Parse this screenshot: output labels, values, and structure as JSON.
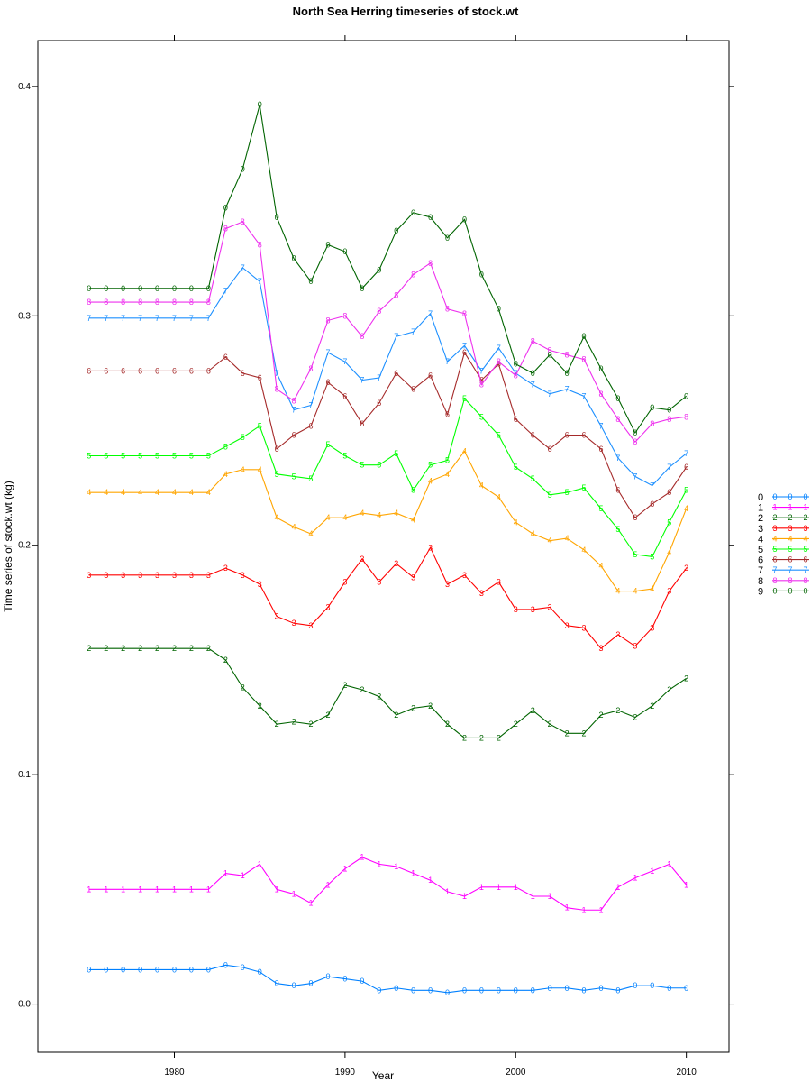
{
  "chart_data": {
    "type": "line",
    "title": "North Sea Herring timeseries of stock.wt",
    "xlabel": "Year",
    "ylabel": "Time series of stock.wt (kg)",
    "xlim": [
      1972,
      2012.5
    ],
    "ylim": [
      -0.021,
      0.42
    ],
    "x_ticks": [
      "1980",
      "1990",
      "2000",
      "2010"
    ],
    "y_ticks": [
      "0.0",
      "0.1",
      "0.2",
      "0.3",
      "0.4"
    ],
    "grid": false,
    "legend_position": "right",
    "x": [
      1975,
      1976,
      1977,
      1978,
      1979,
      1980,
      1981,
      1982,
      1983,
      1984,
      1985,
      1986,
      1987,
      1988,
      1989,
      1990,
      1991,
      1992,
      1993,
      1994,
      1995,
      1996,
      1997,
      1998,
      1999,
      2000,
      2001,
      2002,
      2003,
      2004,
      2005,
      2006,
      2007,
      2008,
      2009,
      2010
    ],
    "series": [
      {
        "name": "0",
        "marker": "0",
        "color": "#0080ff",
        "values": [
          0.015,
          0.015,
          0.015,
          0.015,
          0.015,
          0.015,
          0.015,
          0.015,
          0.017,
          0.016,
          0.014,
          0.009,
          0.008,
          0.009,
          0.012,
          0.011,
          0.01,
          0.006,
          0.007,
          0.006,
          0.006,
          0.005,
          0.006,
          0.006,
          0.006,
          0.006,
          0.006,
          0.007,
          0.007,
          0.006,
          0.007,
          0.006,
          0.008,
          0.008,
          0.007,
          0.007
        ]
      },
      {
        "name": "1",
        "marker": "1",
        "color": "#ff00ff",
        "values": [
          0.05,
          0.05,
          0.05,
          0.05,
          0.05,
          0.05,
          0.05,
          0.05,
          0.057,
          0.056,
          0.061,
          0.05,
          0.048,
          0.044,
          0.052,
          0.059,
          0.064,
          0.061,
          0.06,
          0.057,
          0.054,
          0.049,
          0.047,
          0.051,
          0.051,
          0.051,
          0.047,
          0.047,
          0.042,
          0.041,
          0.041,
          0.051,
          0.055,
          0.058,
          0.061,
          0.052
        ]
      },
      {
        "name": "2",
        "marker": "2",
        "color": "#006400",
        "values": [
          0.155,
          0.155,
          0.155,
          0.155,
          0.155,
          0.155,
          0.155,
          0.155,
          0.15,
          0.138,
          0.13,
          0.122,
          0.123,
          0.122,
          0.126,
          0.139,
          0.137,
          0.134,
          0.126,
          0.129,
          0.13,
          0.122,
          0.116,
          0.116,
          0.116,
          0.122,
          0.128,
          0.122,
          0.118,
          0.118,
          0.126,
          0.128,
          0.125,
          0.13,
          0.137,
          0.142
        ]
      },
      {
        "name": "3",
        "marker": "3",
        "color": "#ff0000",
        "values": [
          0.187,
          0.187,
          0.187,
          0.187,
          0.187,
          0.187,
          0.187,
          0.187,
          0.19,
          0.187,
          0.183,
          0.169,
          0.166,
          0.165,
          0.173,
          0.184,
          0.194,
          0.184,
          0.192,
          0.186,
          0.199,
          0.183,
          0.187,
          0.179,
          0.184,
          0.172,
          0.172,
          0.173,
          0.165,
          0.164,
          0.155,
          0.161,
          0.156,
          0.164,
          0.18,
          0.19
        ]
      },
      {
        "name": "4",
        "marker": "4",
        "color": "#ffa500",
        "values": [
          0.223,
          0.223,
          0.223,
          0.223,
          0.223,
          0.223,
          0.223,
          0.223,
          0.231,
          0.233,
          0.233,
          0.212,
          0.208,
          0.205,
          0.212,
          0.212,
          0.214,
          0.213,
          0.214,
          0.211,
          0.228,
          0.231,
          0.241,
          0.226,
          0.221,
          0.21,
          0.205,
          0.202,
          0.203,
          0.198,
          0.191,
          0.18,
          0.18,
          0.181,
          0.197,
          0.216
        ]
      },
      {
        "name": "5",
        "marker": "5",
        "color": "#00ff00",
        "values": [
          0.239,
          0.239,
          0.239,
          0.239,
          0.239,
          0.239,
          0.239,
          0.239,
          0.243,
          0.247,
          0.252,
          0.231,
          0.23,
          0.229,
          0.244,
          0.239,
          0.235,
          0.235,
          0.24,
          0.224,
          0.235,
          0.237,
          0.264,
          0.256,
          0.248,
          0.234,
          0.229,
          0.222,
          0.223,
          0.225,
          0.216,
          0.207,
          0.196,
          0.195,
          0.21,
          0.224
        ]
      },
      {
        "name": "6",
        "marker": "6",
        "color": "#a52a2a",
        "values": [
          0.276,
          0.276,
          0.276,
          0.276,
          0.276,
          0.276,
          0.276,
          0.276,
          0.282,
          0.275,
          0.273,
          0.242,
          0.248,
          0.252,
          0.271,
          0.265,
          0.253,
          0.262,
          0.275,
          0.268,
          0.274,
          0.257,
          0.284,
          0.272,
          0.279,
          0.255,
          0.248,
          0.242,
          0.248,
          0.248,
          0.242,
          0.224,
          0.212,
          0.218,
          0.223,
          0.234
        ]
      },
      {
        "name": "7",
        "marker": "7",
        "color": "#1e90ff",
        "values": [
          0.299,
          0.299,
          0.299,
          0.299,
          0.299,
          0.299,
          0.299,
          0.299,
          0.311,
          0.321,
          0.315,
          0.275,
          0.259,
          0.261,
          0.284,
          0.28,
          0.272,
          0.273,
          0.291,
          0.293,
          0.301,
          0.28,
          0.287,
          0.276,
          0.286,
          0.275,
          0.27,
          0.266,
          0.268,
          0.265,
          0.252,
          0.238,
          0.23,
          0.226,
          0.234,
          0.24
        ]
      },
      {
        "name": "8",
        "marker": "8",
        "color": "#ee30ee",
        "values": [
          0.306,
          0.306,
          0.306,
          0.306,
          0.306,
          0.306,
          0.306,
          0.306,
          0.338,
          0.341,
          0.331,
          0.268,
          0.263,
          0.277,
          0.298,
          0.3,
          0.291,
          0.302,
          0.309,
          0.318,
          0.323,
          0.303,
          0.301,
          0.27,
          0.28,
          0.274,
          0.289,
          0.285,
          0.283,
          0.281,
          0.266,
          0.255,
          0.245,
          0.253,
          0.255,
          0.256
        ]
      },
      {
        "name": "9",
        "marker": "0",
        "color": "#006400",
        "values": [
          0.312,
          0.312,
          0.312,
          0.312,
          0.312,
          0.312,
          0.312,
          0.312,
          0.347,
          0.364,
          0.392,
          0.343,
          0.325,
          0.315,
          0.331,
          0.328,
          0.312,
          0.32,
          0.337,
          0.345,
          0.343,
          0.334,
          0.342,
          0.318,
          0.303,
          0.279,
          0.275,
          0.283,
          0.275,
          0.291,
          0.277,
          0.264,
          0.249,
          0.26,
          0.259,
          0.265
        ]
      }
    ]
  }
}
